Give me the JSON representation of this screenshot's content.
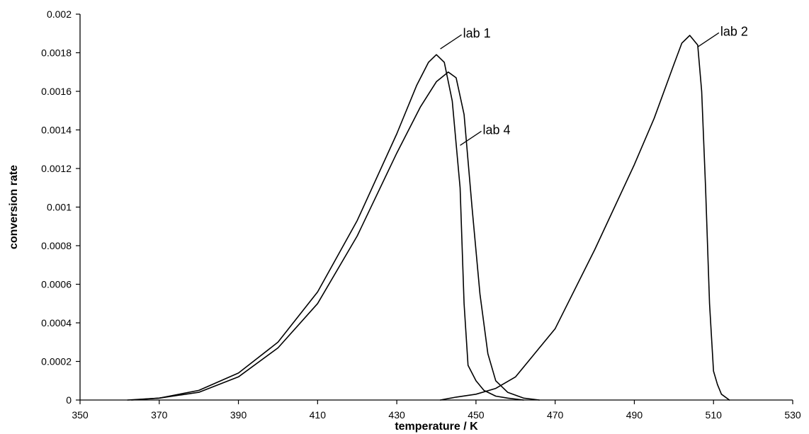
{
  "chart_data": {
    "type": "line",
    "xlabel": "temperature / K",
    "ylabel": "conversion rate",
    "xlim": [
      350,
      530
    ],
    "ylim": [
      0,
      0.002
    ],
    "x_ticks": [
      350,
      370,
      390,
      410,
      430,
      450,
      470,
      490,
      510,
      530
    ],
    "y_ticks": [
      0,
      0.0002,
      0.0004,
      0.0006,
      0.0008,
      0.001,
      0.0012,
      0.0014,
      0.0016,
      0.0018,
      0.002
    ],
    "x_tick_labels": [
      "350",
      "370",
      "390",
      "410",
      "430",
      "450",
      "470",
      "490",
      "510",
      "530"
    ],
    "y_tick_labels": [
      "0",
      "0.0002",
      "0.0004",
      "0.0006",
      "0.0008",
      "0.001",
      "0.0012",
      "0.0014",
      "0.0016",
      "0.0018",
      "0.002"
    ],
    "grid": false,
    "legend": "none",
    "series": [
      {
        "name": "lab 1",
        "label_anchor": {
          "x": 441,
          "y": 0.00182
        },
        "x": [
          362,
          370,
          380,
          390,
          400,
          410,
          420,
          430,
          435,
          438,
          440,
          442,
          444,
          446,
          447,
          448,
          450,
          452,
          455,
          458,
          462
        ],
        "y": [
          0,
          1e-05,
          5e-05,
          0.00014,
          0.0003,
          0.00056,
          0.00093,
          0.00138,
          0.00163,
          0.00175,
          0.00179,
          0.00175,
          0.00155,
          0.0011,
          0.0005,
          0.00018,
          0.0001,
          5e-05,
          2e-05,
          1e-05,
          0
        ]
      },
      {
        "name": "lab 4",
        "label_anchor": {
          "x": 446,
          "y": 0.00132
        },
        "x": [
          363,
          370,
          380,
          390,
          400,
          410,
          420,
          430,
          436,
          440,
          443,
          445,
          447,
          449,
          451,
          453,
          455,
          458,
          462,
          466
        ],
        "y": [
          0,
          1e-05,
          4e-05,
          0.00012,
          0.00027,
          0.0005,
          0.00085,
          0.00128,
          0.00152,
          0.00165,
          0.0017,
          0.00167,
          0.00148,
          0.001,
          0.00055,
          0.00024,
          0.0001,
          4e-05,
          1e-05,
          0
        ]
      },
      {
        "name": "lab 2",
        "label_anchor": {
          "x": 506,
          "y": 0.00183
        },
        "x": [
          441,
          445,
          450,
          455,
          460,
          470,
          480,
          490,
          495,
          500,
          502,
          504,
          506,
          507,
          508,
          509,
          510,
          511,
          512,
          514
        ],
        "y": [
          0,
          1.5e-05,
          3e-05,
          6e-05,
          0.00012,
          0.00037,
          0.00078,
          0.00122,
          0.00146,
          0.00174,
          0.00185,
          0.00189,
          0.00184,
          0.0016,
          0.0011,
          0.0005,
          0.00015,
          8e-05,
          3e-05,
          0
        ]
      }
    ]
  }
}
